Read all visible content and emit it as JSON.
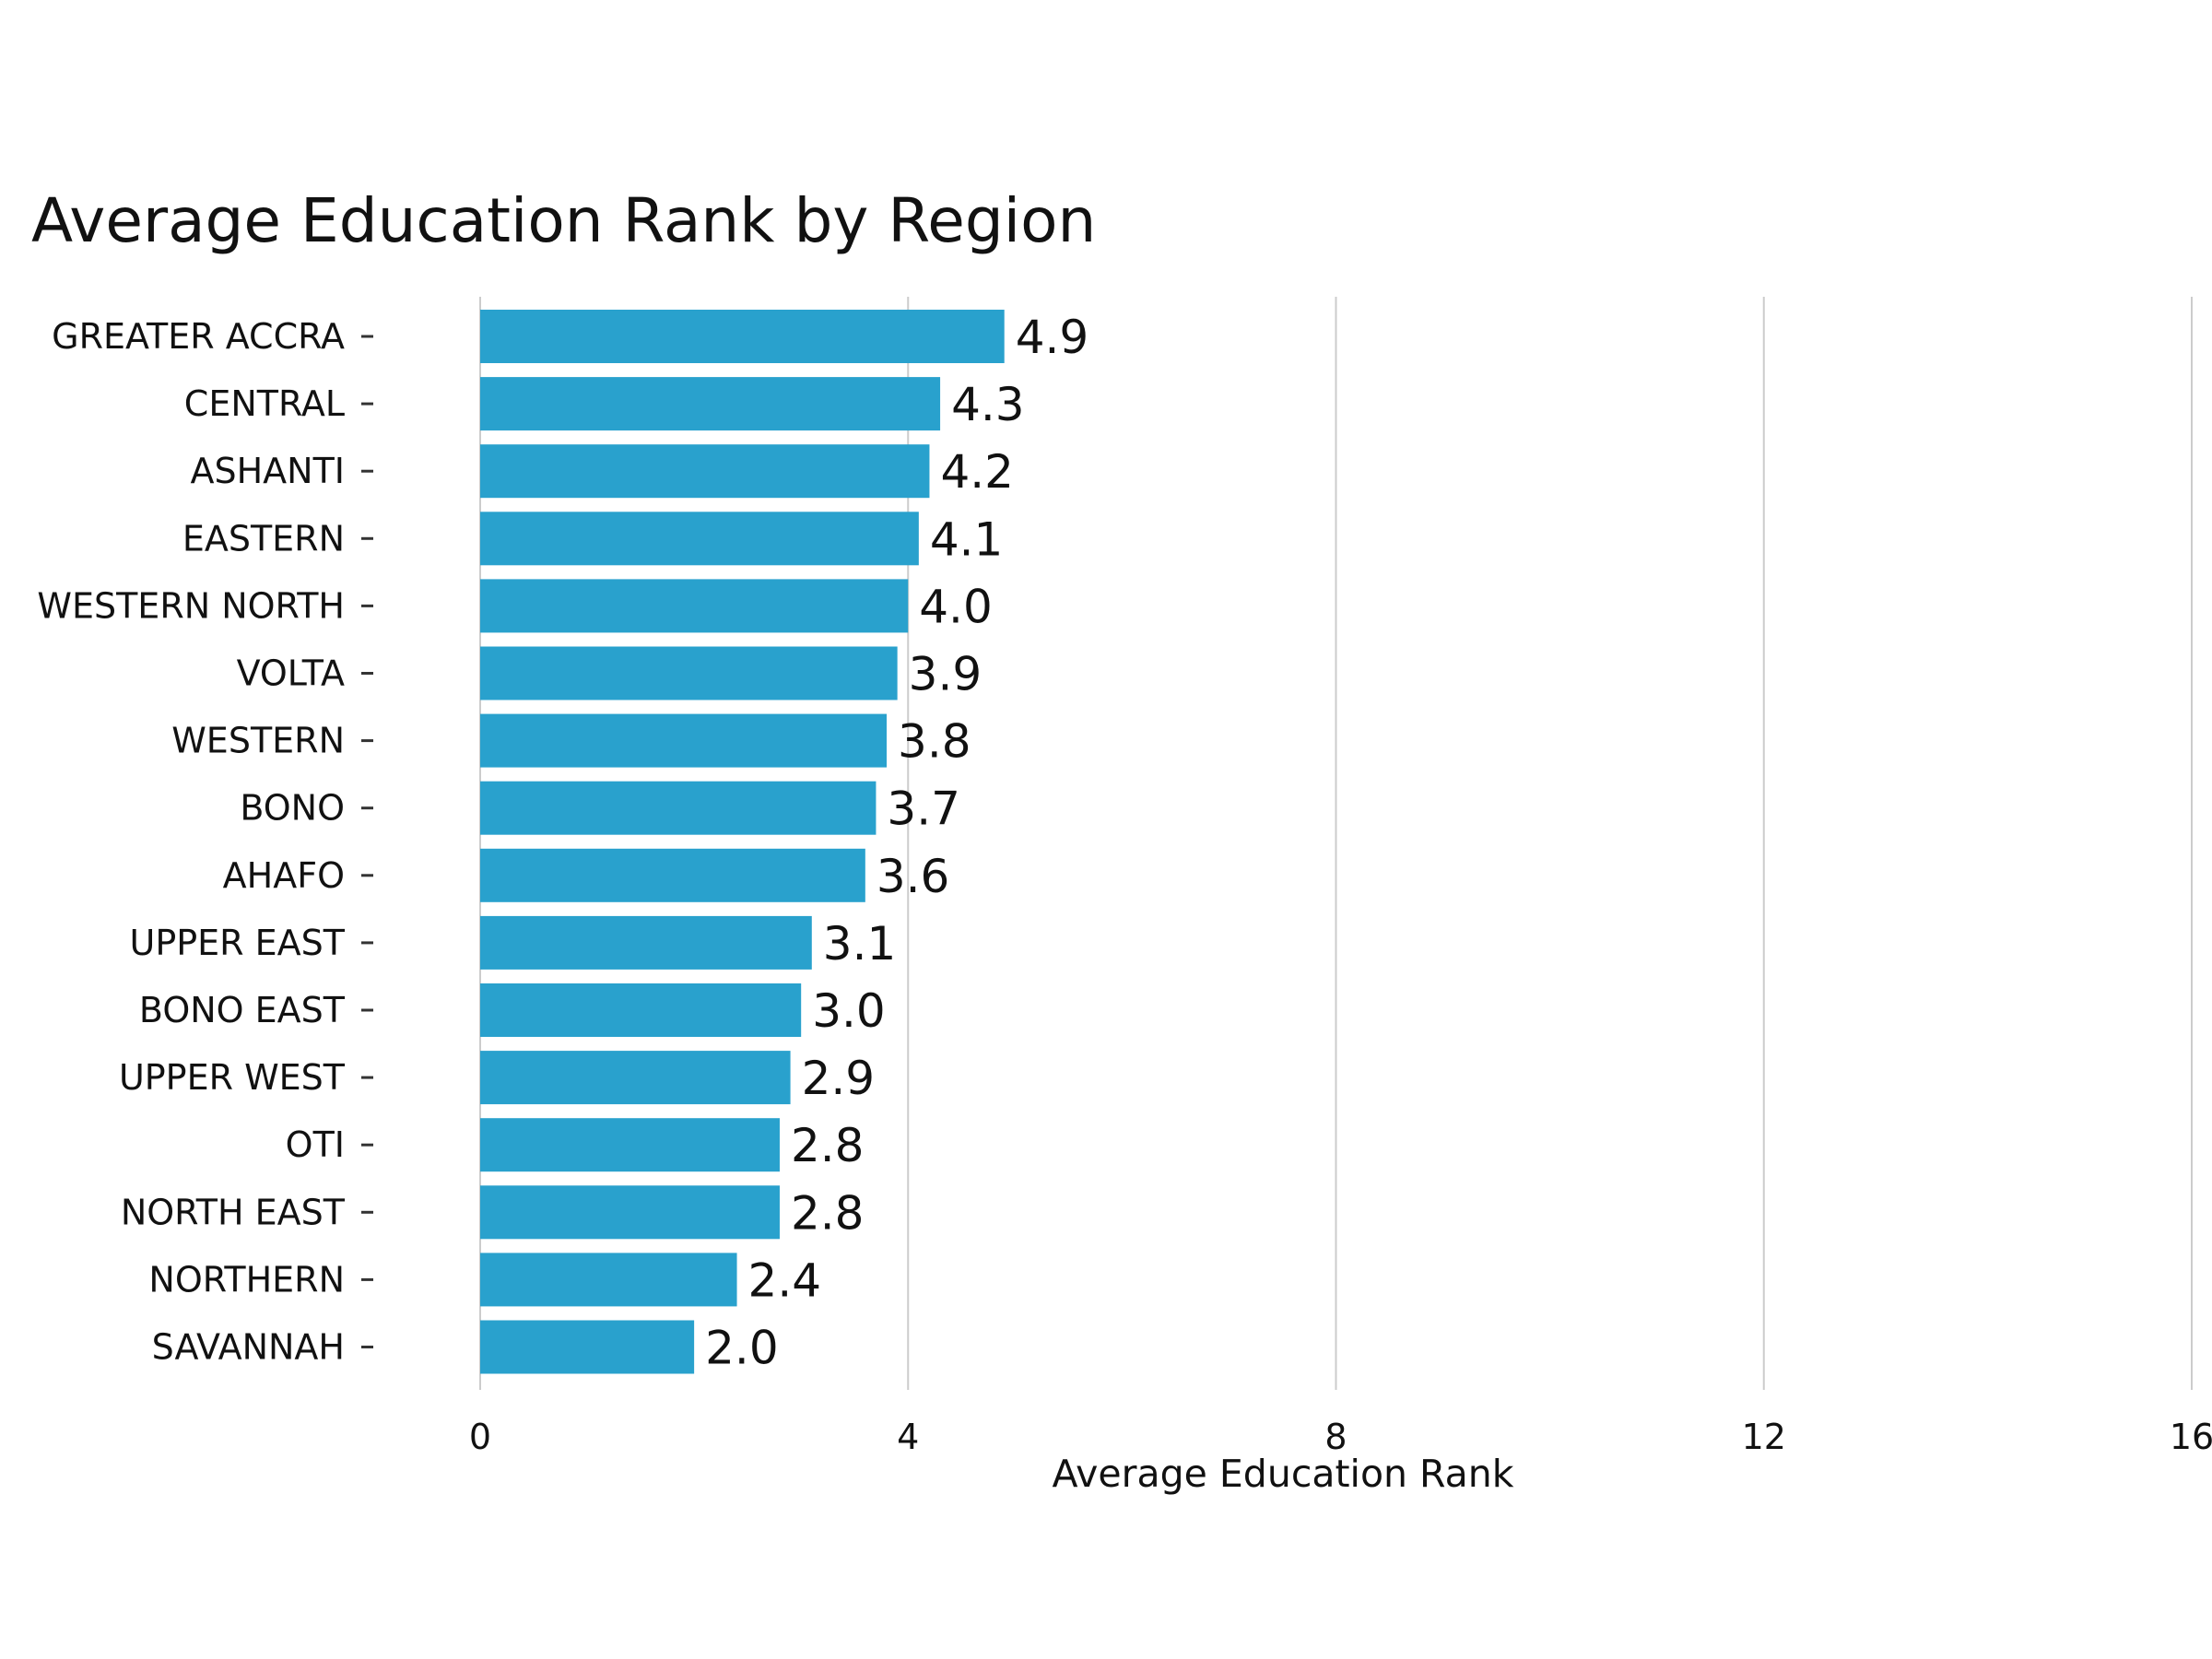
{
  "chart_data": {
    "type": "bar",
    "orientation": "horizontal",
    "title": "Average Education Rank by Region",
    "xlabel": "Average Education Rank",
    "ylabel": "",
    "xlim": [
      0,
      16
    ],
    "xticks": [
      0,
      4,
      8,
      12,
      16
    ],
    "grid": true,
    "bar_color": "#29a1cd",
    "categories": [
      "GREATER ACCRA",
      "CENTRAL",
      "ASHANTI",
      "EASTERN",
      "WESTERN NORTH",
      "VOLTA",
      "WESTERN",
      "BONO",
      "AHAFO",
      "UPPER EAST",
      "BONO EAST",
      "UPPER WEST",
      "OTI",
      "NORTH EAST",
      "NORTHERN",
      "SAVANNAH"
    ],
    "values": [
      4.9,
      4.3,
      4.2,
      4.1,
      4.0,
      3.9,
      3.8,
      3.7,
      3.6,
      3.1,
      3.0,
      2.9,
      2.8,
      2.8,
      2.4,
      2.0
    ],
    "value_labels": [
      "4.9",
      "4.3",
      "4.2",
      "4.1",
      "4.0",
      "3.9",
      "3.8",
      "3.7",
      "3.6",
      "3.1",
      "3.0",
      "2.9",
      "2.8",
      "2.8",
      "2.4",
      "2.0"
    ]
  }
}
